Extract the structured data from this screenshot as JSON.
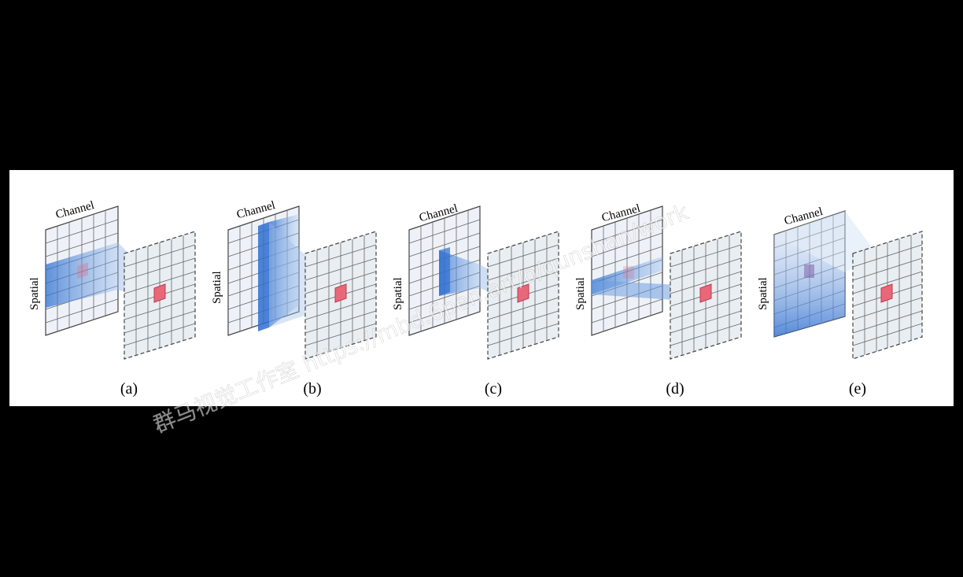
{
  "figure": {
    "panels": [
      {
        "id": "a",
        "caption": "(a)",
        "channel_label": "Channel",
        "spatial_label": "Spatial"
      },
      {
        "id": "b",
        "caption": "(b)",
        "channel_label": "Channel",
        "spatial_label": "Spatial"
      },
      {
        "id": "c",
        "caption": "(c)",
        "channel_label": "Channel",
        "spatial_label": "Spatial"
      },
      {
        "id": "d",
        "caption": "(d)",
        "channel_label": "Channel",
        "spatial_label": "Spatial"
      },
      {
        "id": "e",
        "caption": "(e)",
        "channel_label": "Channel",
        "spatial_label": "Spatial"
      }
    ]
  },
  "watermark": {
    "text": "群马视觉工作室 https://mbd.6pen.art/o/qunshan/work"
  },
  "colors": {
    "background": "#000000",
    "canvas": "#ffffff",
    "grid_line": "#555555",
    "input_fill": "#eef2f8",
    "output_fill": "#e9eef3",
    "kernel_fill": "#3a7bd5",
    "target_cell": "#e8687a"
  }
}
